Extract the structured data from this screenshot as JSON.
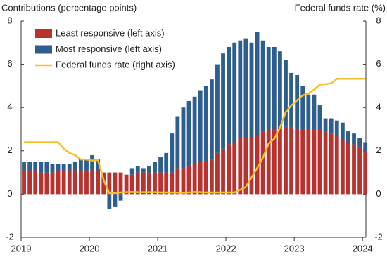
{
  "chart_data": {
    "type": "bar",
    "stacked": true,
    "y_label": "Contributions (percentage points)",
    "y2_label": "Federal funds rate (%)",
    "x": [
      0,
      1,
      2,
      3,
      4,
      5,
      6,
      7,
      8,
      9,
      10,
      11,
      12,
      13,
      14,
      15,
      16,
      17,
      18,
      19,
      20,
      21,
      22,
      23,
      24,
      25,
      26,
      27,
      28,
      29,
      30,
      31,
      32,
      33,
      34,
      35,
      36,
      37,
      38,
      39,
      40,
      41,
      42,
      43,
      44,
      45,
      46,
      47,
      48,
      49,
      50,
      51,
      52,
      53,
      54,
      55,
      56,
      57,
      58,
      59,
      60
    ],
    "xlim": [
      0,
      60.6
    ],
    "xticks": [
      {
        "value": 0,
        "label": "2019"
      },
      {
        "value": 12,
        "label": "2020"
      },
      {
        "value": 24,
        "label": "2021"
      },
      {
        "value": 36,
        "label": "2022"
      },
      {
        "value": 48,
        "label": "2023"
      },
      {
        "value": 60,
        "label": "2024"
      }
    ],
    "ylim": [
      -2,
      8
    ],
    "yticks": [
      -2,
      0,
      2,
      4,
      6,
      8
    ],
    "y2lim": [
      -2,
      8
    ],
    "y2ticks": [
      -2,
      0,
      2,
      4,
      6,
      8
    ],
    "legend": "upper left",
    "series": [
      {
        "name": "Least responsive (left axis)",
        "type": "bar",
        "color": "#b8332f",
        "values": [
          1.1,
          1.1,
          1.1,
          1.0,
          1.0,
          1.0,
          1.1,
          1.1,
          1.1,
          1.1,
          1.1,
          1.1,
          1.1,
          1.1,
          1.0,
          1.0,
          1.0,
          1.0,
          0.9,
          0.9,
          1.0,
          1.0,
          1.0,
          1.0,
          1.0,
          1.0,
          1.0,
          1.2,
          1.2,
          1.3,
          1.4,
          1.5,
          1.5,
          1.6,
          1.9,
          2.1,
          2.3,
          2.4,
          2.6,
          2.6,
          2.6,
          2.7,
          2.9,
          3.0,
          3.0,
          3.1,
          3.1,
          3.1,
          3.0,
          3.0,
          3.0,
          3.0,
          3.0,
          2.9,
          2.8,
          2.7,
          2.5,
          2.4,
          2.3,
          2.2,
          2.0
        ]
      },
      {
        "name": "Most responsive (left axis)",
        "type": "bar",
        "color": "#2d5e8e",
        "values": [
          0.4,
          0.4,
          0.4,
          0.5,
          0.5,
          0.4,
          0.3,
          0.3,
          0.3,
          0.4,
          0.5,
          0.5,
          0.7,
          0.5,
          0.0,
          -0.7,
          -0.6,
          -0.3,
          0.0,
          0.3,
          0.3,
          0.2,
          0.3,
          0.5,
          0.7,
          0.9,
          1.8,
          2.4,
          2.8,
          3.0,
          3.1,
          3.3,
          3.5,
          3.7,
          4.1,
          4.4,
          4.5,
          4.6,
          4.5,
          4.6,
          4.4,
          4.8,
          4.2,
          3.8,
          3.8,
          3.5,
          3.1,
          2.5,
          2.5,
          2.0,
          1.6,
          1.6,
          1.1,
          0.6,
          0.7,
          0.7,
          0.8,
          0.5,
          0.5,
          0.4,
          0.4
        ]
      },
      {
        "name": "Federal funds rate (right axis)",
        "type": "line",
        "axis": "y2",
        "color": "#f5c02c",
        "values": [
          2.4,
          2.4,
          2.4,
          2.4,
          2.4,
          2.4,
          2.4,
          2.1,
          1.9,
          1.8,
          1.6,
          1.6,
          1.55,
          1.58,
          0.65,
          0.05,
          0.05,
          0.08,
          0.09,
          0.1,
          0.09,
          0.09,
          0.09,
          0.09,
          0.08,
          0.08,
          0.08,
          0.07,
          0.06,
          0.08,
          0.1,
          0.09,
          0.08,
          0.08,
          0.08,
          0.08,
          0.08,
          0.08,
          0.2,
          0.33,
          0.77,
          1.21,
          1.68,
          2.33,
          2.56,
          3.08,
          3.78,
          4.1,
          4.33,
          4.57,
          4.65,
          4.83,
          5.06,
          5.08,
          5.12,
          5.33,
          5.33,
          5.33,
          5.33,
          5.33,
          5.33
        ]
      }
    ]
  }
}
